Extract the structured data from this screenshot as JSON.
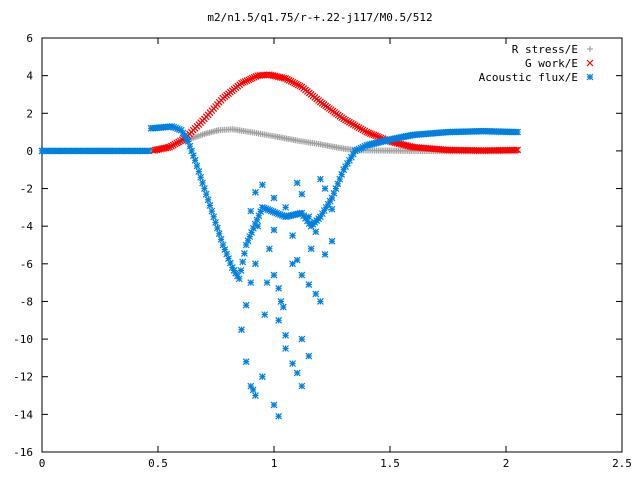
{
  "chart_data": {
    "type": "scatter",
    "title": "m2/n1.5/q1.75/r-+.22-j117/M0.5/512",
    "xlabel": "",
    "ylabel": "",
    "xlim": [
      0,
      2.5
    ],
    "ylim": [
      -16,
      6
    ],
    "xticks": [
      0,
      0.5,
      1,
      1.5,
      2,
      2.5
    ],
    "yticks": [
      6,
      4,
      2,
      0,
      -2,
      -4,
      -6,
      -8,
      -10,
      -12,
      -14,
      -16
    ],
    "grid": false,
    "legend_position": "top-right",
    "series": [
      {
        "name": "R stress/E",
        "marker": "plus",
        "color": "#a0a0a0",
        "points": [
          [
            0.48,
            0.05
          ],
          [
            0.55,
            0.25
          ],
          [
            0.62,
            0.55
          ],
          [
            0.7,
            0.9
          ],
          [
            0.76,
            1.1
          ],
          [
            0.82,
            1.15
          ],
          [
            0.9,
            1.0
          ],
          [
            1.0,
            0.78
          ],
          [
            1.1,
            0.55
          ],
          [
            1.2,
            0.35
          ],
          [
            1.3,
            0.12
          ],
          [
            1.36,
            0.03
          ],
          [
            1.45,
            0.02
          ],
          [
            1.6,
            0.0
          ],
          [
            1.8,
            -0.02
          ],
          [
            2.05,
            -0.02
          ]
        ]
      },
      {
        "name": "G work/E",
        "marker": "cross",
        "color": "#ff0000",
        "points": [
          [
            0.48,
            0.02
          ],
          [
            0.55,
            0.2
          ],
          [
            0.62,
            0.7
          ],
          [
            0.7,
            1.7
          ],
          [
            0.78,
            2.8
          ],
          [
            0.86,
            3.6
          ],
          [
            0.93,
            4.0
          ],
          [
            0.98,
            4.05
          ],
          [
            1.05,
            3.85
          ],
          [
            1.12,
            3.4
          ],
          [
            1.2,
            2.6
          ],
          [
            1.3,
            1.7
          ],
          [
            1.4,
            1.0
          ],
          [
            1.5,
            0.5
          ],
          [
            1.6,
            0.2
          ],
          [
            1.75,
            0.05
          ],
          [
            1.9,
            0.02
          ],
          [
            2.05,
            0.05
          ]
        ]
      },
      {
        "name": "Acoustic flux/E",
        "marker": "star",
        "color": "#0080e0",
        "points": [
          [
            0.0,
            0.0
          ],
          [
            0.1,
            0.0
          ],
          [
            0.2,
            0.0
          ],
          [
            0.3,
            0.0
          ],
          [
            0.4,
            0.0
          ],
          [
            0.46,
            0.0
          ],
          [
            0.47,
            1.2
          ],
          [
            0.52,
            1.25
          ],
          [
            0.56,
            1.3
          ],
          [
            0.6,
            1.1
          ],
          [
            0.63,
            0.5
          ],
          [
            0.66,
            -0.5
          ],
          [
            0.7,
            -2.0
          ],
          [
            0.74,
            -3.5
          ],
          [
            0.78,
            -5.0
          ],
          [
            0.82,
            -6.2
          ],
          [
            0.85,
            -6.8
          ],
          [
            0.88,
            -5.0
          ],
          [
            0.95,
            -3.0
          ],
          [
            1.05,
            -3.5
          ],
          [
            1.12,
            -3.3
          ],
          [
            1.16,
            -4.0
          ],
          [
            1.2,
            -3.5
          ],
          [
            1.25,
            -2.5
          ],
          [
            1.3,
            -1.0
          ],
          [
            1.35,
            0.0
          ],
          [
            1.4,
            0.3
          ],
          [
            1.5,
            0.6
          ],
          [
            1.6,
            0.85
          ],
          [
            1.75,
            1.0
          ],
          [
            1.9,
            1.05
          ],
          [
            2.05,
            1.0
          ],
          [
            0.86,
            -9.5
          ],
          [
            0.88,
            -11.2
          ],
          [
            0.9,
            -12.5
          ],
          [
            0.92,
            -13.0
          ],
          [
            0.91,
            -12.7
          ],
          [
            0.95,
            -12.0
          ],
          [
            0.88,
            -8.2
          ],
          [
            0.9,
            -7.0
          ],
          [
            0.92,
            -6.0
          ],
          [
            0.93,
            -4.0
          ],
          [
            0.9,
            -3.2
          ],
          [
            0.92,
            -2.2
          ],
          [
            0.95,
            -1.8
          ],
          [
            0.98,
            -5.2
          ],
          [
            1.0,
            -6.6
          ],
          [
            1.02,
            -7.3
          ],
          [
            1.03,
            -8.0
          ],
          [
            1.04,
            -8.3
          ],
          [
            1.02,
            -9.0
          ],
          [
            1.05,
            -10.5
          ],
          [
            1.08,
            -11.3
          ],
          [
            1.1,
            -11.8
          ],
          [
            1.12,
            -12.5
          ],
          [
            1.0,
            -13.5
          ],
          [
            1.02,
            -14.1
          ],
          [
            1.0,
            -2.5
          ],
          [
            1.05,
            -3.0
          ],
          [
            1.1,
            -1.7
          ],
          [
            1.12,
            -2.3
          ],
          [
            1.15,
            -3.5
          ],
          [
            1.08,
            -4.5
          ],
          [
            1.1,
            -5.8
          ],
          [
            1.12,
            -6.6
          ],
          [
            1.15,
            -7.1
          ],
          [
            1.18,
            -7.6
          ],
          [
            1.2,
            -8.0
          ],
          [
            1.22,
            -5.5
          ],
          [
            1.25,
            -4.8
          ],
          [
            1.18,
            -4.3
          ],
          [
            1.16,
            -5.2
          ],
          [
            1.2,
            -1.5
          ],
          [
            1.22,
            -2.0
          ],
          [
            1.25,
            -3.1
          ],
          [
            1.05,
            -9.8
          ],
          [
            1.12,
            -10.0
          ],
          [
            1.15,
            -10.9
          ],
          [
            1.08,
            -6.0
          ],
          [
            1.0,
            -4.2
          ],
          [
            0.97,
            -7.0
          ],
          [
            0.96,
            -8.7
          ]
        ]
      }
    ]
  }
}
